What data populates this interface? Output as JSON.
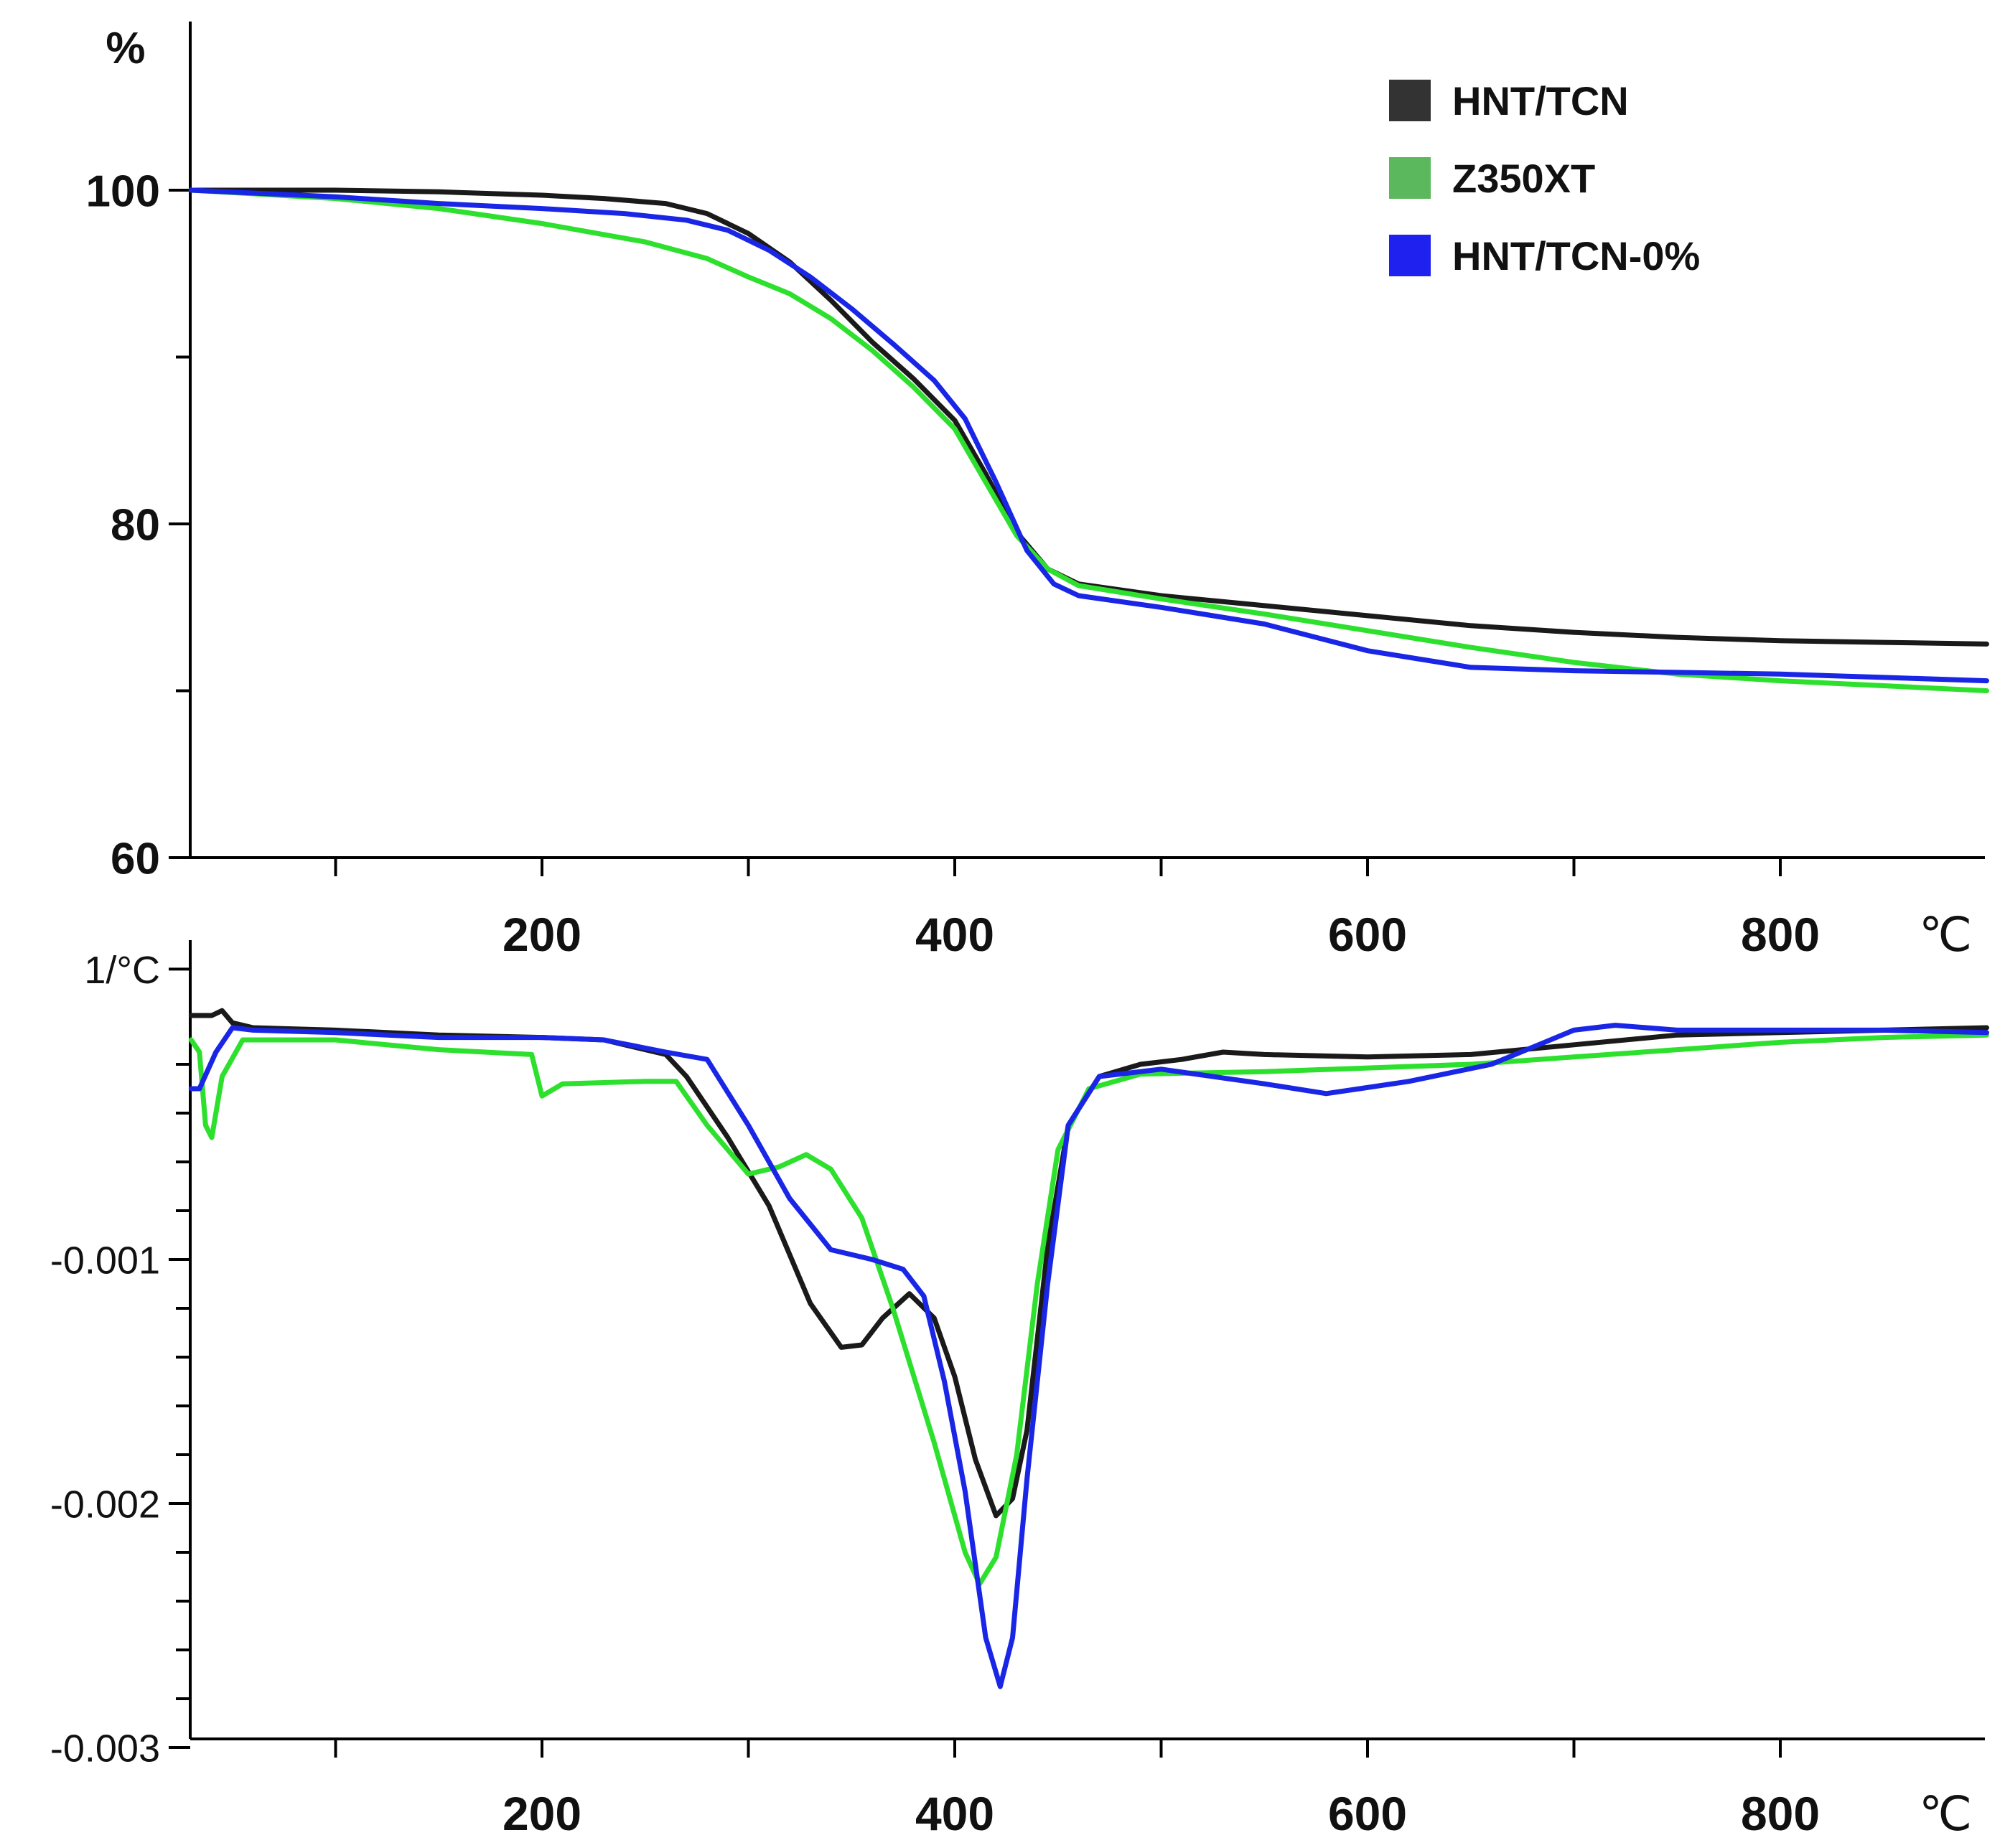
{
  "chart_data": [
    {
      "id": "tga",
      "type": "line",
      "ylabel": "%",
      "xlabel": "℃",
      "xlim": [
        30,
        900
      ],
      "ylim": [
        60,
        110
      ],
      "x_ticks": [
        200,
        400,
        600,
        800
      ],
      "x_minor_ticks": [
        100,
        200,
        300,
        400,
        500,
        600,
        700,
        800
      ],
      "y_ticks": [
        {
          "value": 60,
          "label": "60"
        },
        {
          "value": 80,
          "label": "80"
        },
        {
          "value": 100,
          "label": "100"
        }
      ],
      "y_minor_ticks": [
        70,
        90
      ],
      "legend": {
        "position": "top-right",
        "entries": [
          {
            "name": "HNT/TCN",
            "color": "#333333"
          },
          {
            "name": "Z350XT",
            "color": "#5cb85c"
          },
          {
            "name": "HNT/TCN-0%",
            "color": "#1f22ee"
          }
        ]
      },
      "series": [
        {
          "name": "HNT/TCN",
          "color": "#1a1a1a",
          "points": [
            [
              30,
              100
            ],
            [
              100,
              100
            ],
            [
              150,
              99.9
            ],
            [
              200,
              99.7
            ],
            [
              230,
              99.5
            ],
            [
              260,
              99.2
            ],
            [
              280,
              98.6
            ],
            [
              300,
              97.4
            ],
            [
              320,
              95.7
            ],
            [
              340,
              93.4
            ],
            [
              360,
              90.9
            ],
            [
              380,
              88.7
            ],
            [
              400,
              86.2
            ],
            [
              415,
              83.0
            ],
            [
              430,
              79.5
            ],
            [
              445,
              77.3
            ],
            [
              460,
              76.4
            ],
            [
              500,
              75.7
            ],
            [
              550,
              75.1
            ],
            [
              600,
              74.5
            ],
            [
              650,
              73.9
            ],
            [
              700,
              73.5
            ],
            [
              750,
              73.2
            ],
            [
              800,
              73.0
            ],
            [
              850,
              72.9
            ],
            [
              900,
              72.8
            ]
          ]
        },
        {
          "name": "Z350XT",
          "color": "#2ee02e",
          "points": [
            [
              30,
              100
            ],
            [
              100,
              99.5
            ],
            [
              150,
              98.9
            ],
            [
              200,
              98.0
            ],
            [
              250,
              96.9
            ],
            [
              280,
              95.9
            ],
            [
              300,
              94.8
            ],
            [
              320,
              93.8
            ],
            [
              340,
              92.3
            ],
            [
              360,
              90.4
            ],
            [
              380,
              88.2
            ],
            [
              400,
              85.7
            ],
            [
              415,
              82.5
            ],
            [
              430,
              79.3
            ],
            [
              445,
              77.3
            ],
            [
              460,
              76.3
            ],
            [
              500,
              75.5
            ],
            [
              550,
              74.6
            ],
            [
              600,
              73.6
            ],
            [
              650,
              72.6
            ],
            [
              700,
              71.7
            ],
            [
              750,
              71.0
            ],
            [
              800,
              70.6
            ],
            [
              850,
              70.3
            ],
            [
              900,
              70.0
            ]
          ]
        },
        {
          "name": "HNT/TCN-0%",
          "color": "#1a26e6",
          "points": [
            [
              30,
              100
            ],
            [
              100,
              99.6
            ],
            [
              150,
              99.2
            ],
            [
              200,
              98.9
            ],
            [
              240,
              98.6
            ],
            [
              270,
              98.2
            ],
            [
              290,
              97.6
            ],
            [
              310,
              96.4
            ],
            [
              330,
              94.8
            ],
            [
              350,
              92.9
            ],
            [
              370,
              90.8
            ],
            [
              390,
              88.6
            ],
            [
              405,
              86.3
            ],
            [
              420,
              82.5
            ],
            [
              435,
              78.4
            ],
            [
              448,
              76.4
            ],
            [
              460,
              75.7
            ],
            [
              500,
              75.0
            ],
            [
              550,
              74.0
            ],
            [
              600,
              72.4
            ],
            [
              650,
              71.4
            ],
            [
              700,
              71.2
            ],
            [
              750,
              71.1
            ],
            [
              800,
              71.0
            ],
            [
              850,
              70.8
            ],
            [
              900,
              70.6
            ]
          ]
        }
      ]
    },
    {
      "id": "dtg",
      "type": "line",
      "ylabel": "1/°C",
      "xlabel": "℃",
      "xlim": [
        30,
        900
      ],
      "ylim": [
        -0.003,
        0.00022
      ],
      "x_ticks": [
        200,
        400,
        600,
        800
      ],
      "x_minor_ticks": [
        100,
        200,
        300,
        400,
        500,
        600,
        700,
        800
      ],
      "y_ticks": [
        {
          "value": 0.00019,
          "label": "1/°C"
        },
        {
          "value": -0.001,
          "label": "-0.001"
        },
        {
          "value": -0.002,
          "label": "-0.002"
        },
        {
          "value": -0.003,
          "label": "-0.003"
        }
      ],
      "y_minor_ticks": [
        -0.0002,
        -0.0004,
        -0.0006,
        -0.0008,
        -0.0012,
        -0.0014,
        -0.0016,
        -0.0018,
        -0.0022,
        -0.0024,
        -0.0026,
        -0.0028
      ],
      "series": [
        {
          "name": "HNT/TCN",
          "color": "#1a1a1a",
          "points": [
            [
              30,
              0.0
            ],
            [
              40,
              0.0
            ],
            [
              45,
              2e-05
            ],
            [
              50,
              -3e-05
            ],
            [
              60,
              -5e-05
            ],
            [
              100,
              -6e-05
            ],
            [
              150,
              -8e-05
            ],
            [
              200,
              -9e-05
            ],
            [
              230,
              -0.0001
            ],
            [
              260,
              -0.00016
            ],
            [
              270,
              -0.00025
            ],
            [
              290,
              -0.0005
            ],
            [
              310,
              -0.00078
            ],
            [
              330,
              -0.00118
            ],
            [
              345,
              -0.00136
            ],
            [
              355,
              -0.00135
            ],
            [
              365,
              -0.00124
            ],
            [
              378,
              -0.00114
            ],
            [
              390,
              -0.00124
            ],
            [
              400,
              -0.00148
            ],
            [
              410,
              -0.00182
            ],
            [
              420,
              -0.00205
            ],
            [
              428,
              -0.00198
            ],
            [
              435,
              -0.0017
            ],
            [
              445,
              -0.00095
            ],
            [
              455,
              -0.00045
            ],
            [
              470,
              -0.00025
            ],
            [
              490,
              -0.0002
            ],
            [
              510,
              -0.00018
            ],
            [
              530,
              -0.00015
            ],
            [
              550,
              -0.00016
            ],
            [
              600,
              -0.00017
            ],
            [
              650,
              -0.00016
            ],
            [
              700,
              -0.00012
            ],
            [
              750,
              -8e-05
            ],
            [
              800,
              -7e-05
            ],
            [
              850,
              -6e-05
            ],
            [
              900,
              -5e-05
            ]
          ]
        },
        {
          "name": "Z350XT",
          "color": "#2ee02e",
          "points": [
            [
              30,
              -0.0001
            ],
            [
              34,
              -0.00015
            ],
            [
              37,
              -0.00045
            ],
            [
              40,
              -0.0005
            ],
            [
              45,
              -0.00025
            ],
            [
              55,
              -0.0001
            ],
            [
              60,
              -0.0001
            ],
            [
              100,
              -0.0001
            ],
            [
              150,
              -0.00014
            ],
            [
              195,
              -0.00016
            ],
            [
              200,
              -0.00033
            ],
            [
              210,
              -0.00028
            ],
            [
              250,
              -0.00027
            ],
            [
              265,
              -0.00027
            ],
            [
              280,
              -0.00045
            ],
            [
              300,
              -0.00065
            ],
            [
              315,
              -0.00062
            ],
            [
              328,
              -0.00057
            ],
            [
              340,
              -0.00063
            ],
            [
              355,
              -0.00083
            ],
            [
              370,
              -0.0012
            ],
            [
              390,
              -0.00175
            ],
            [
              405,
              -0.0022
            ],
            [
              412,
              -0.00233
            ],
            [
              420,
              -0.00222
            ],
            [
              430,
              -0.0018
            ],
            [
              440,
              -0.0011
            ],
            [
              450,
              -0.00055
            ],
            [
              465,
              -0.0003
            ],
            [
              490,
              -0.00024
            ],
            [
              550,
              -0.00023
            ],
            [
              650,
              -0.0002
            ],
            [
              700,
              -0.00017
            ],
            [
              750,
              -0.00014
            ],
            [
              800,
              -0.00011
            ],
            [
              850,
              -9e-05
            ],
            [
              900,
              -8e-05
            ]
          ]
        },
        {
          "name": "HNT/TCN-0%",
          "color": "#1a26e6",
          "points": [
            [
              30,
              -0.0003
            ],
            [
              34,
              -0.0003
            ],
            [
              42,
              -0.00015
            ],
            [
              50,
              -5e-05
            ],
            [
              60,
              -6e-05
            ],
            [
              100,
              -7e-05
            ],
            [
              150,
              -9e-05
            ],
            [
              200,
              -9e-05
            ],
            [
              230,
              -0.0001
            ],
            [
              260,
              -0.00015
            ],
            [
              280,
              -0.00018
            ],
            [
              300,
              -0.00045
            ],
            [
              320,
              -0.00075
            ],
            [
              340,
              -0.00096
            ],
            [
              360,
              -0.001
            ],
            [
              375,
              -0.00104
            ],
            [
              385,
              -0.00115
            ],
            [
              395,
              -0.0015
            ],
            [
              405,
              -0.00195
            ],
            [
              415,
              -0.00255
            ],
            [
              422,
              -0.00275
            ],
            [
              428,
              -0.00255
            ],
            [
              435,
              -0.0019
            ],
            [
              445,
              -0.0011
            ],
            [
              455,
              -0.00045
            ],
            [
              470,
              -0.00025
            ],
            [
              500,
              -0.00022
            ],
            [
              550,
              -0.00028
            ],
            [
              580,
              -0.00032
            ],
            [
              620,
              -0.00027
            ],
            [
              660,
              -0.0002
            ],
            [
              700,
              -6e-05
            ],
            [
              720,
              -4e-05
            ],
            [
              750,
              -6e-05
            ],
            [
              800,
              -6e-05
            ],
            [
              850,
              -6e-05
            ],
            [
              900,
              -7e-05
            ]
          ]
        }
      ]
    }
  ]
}
